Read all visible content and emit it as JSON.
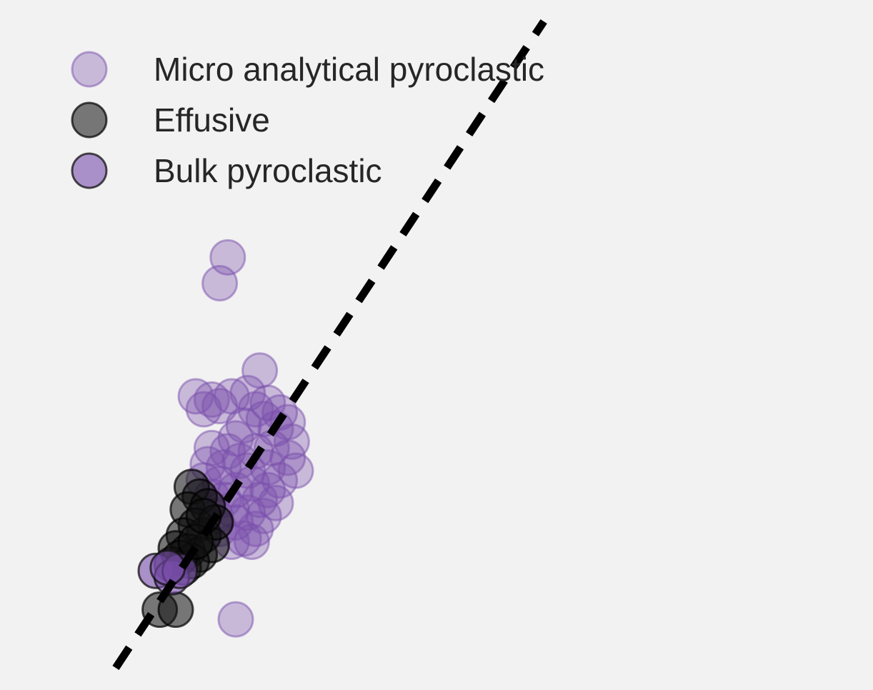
{
  "chart_data": {
    "type": "scatter",
    "title": "",
    "xlabel": "",
    "ylabel": "",
    "xlim": [
      0,
      100
    ],
    "ylim": [
      0,
      100
    ],
    "grid": false,
    "legend_position": "upper-left",
    "background": "#f2f2f2",
    "series": [
      {
        "name": "Micro analytical pyroclastic",
        "color": "#7a4fab",
        "edge_color": "#7a4fab",
        "opacity": 0.35,
        "points": [
          [
            24.0,
            63.5
          ],
          [
            23.0,
            59.5
          ],
          [
            28.0,
            46.0
          ],
          [
            25.0,
            7.5
          ],
          [
            20.0,
            42.0
          ],
          [
            21.0,
            40.0
          ],
          [
            22.0,
            41.5
          ],
          [
            23.0,
            40.5
          ],
          [
            24.5,
            42.0
          ],
          [
            26.5,
            42.5
          ],
          [
            27.5,
            40.0
          ],
          [
            29.0,
            41.0
          ],
          [
            30.5,
            39.5
          ],
          [
            31.5,
            38.0
          ],
          [
            32.0,
            35.0
          ],
          [
            30.0,
            37.0
          ],
          [
            28.5,
            38.5
          ],
          [
            26.0,
            37.5
          ],
          [
            25.0,
            35.5
          ],
          [
            24.0,
            33.5
          ],
          [
            22.0,
            34.0
          ],
          [
            21.5,
            31.5
          ],
          [
            23.5,
            31.0
          ],
          [
            25.5,
            32.0
          ],
          [
            27.5,
            33.5
          ],
          [
            29.5,
            34.0
          ],
          [
            31.5,
            32.5
          ],
          [
            32.5,
            30.5
          ],
          [
            30.5,
            29.0
          ],
          [
            29.0,
            27.5
          ],
          [
            27.0,
            28.5
          ],
          [
            25.0,
            27.5
          ],
          [
            23.5,
            26.0
          ],
          [
            22.0,
            26.5
          ],
          [
            24.5,
            24.5
          ],
          [
            26.5,
            24.0
          ],
          [
            28.5,
            23.5
          ],
          [
            30.0,
            25.5
          ],
          [
            27.5,
            21.5
          ],
          [
            26.0,
            20.0
          ],
          [
            24.5,
            19.5
          ],
          [
            23.0,
            21.5
          ],
          [
            29.0,
            31.0
          ],
          [
            21.0,
            29.0
          ],
          [
            26.5,
            30.5
          ],
          [
            23.0,
            28.5
          ],
          [
            28.0,
            26.0
          ],
          [
            25.0,
            22.5
          ],
          [
            27.0,
            19.5
          ],
          [
            22.5,
            23.5
          ]
        ]
      },
      {
        "name": "Effusive",
        "color": "#111111",
        "edge_color": "#000000",
        "opacity": 0.55,
        "points": [
          [
            19.5,
            28.0
          ],
          [
            20.5,
            26.5
          ],
          [
            19.0,
            24.5
          ],
          [
            21.5,
            25.0
          ],
          [
            20.0,
            22.0
          ],
          [
            21.0,
            20.5
          ],
          [
            18.5,
            20.5
          ],
          [
            17.5,
            18.5
          ],
          [
            19.0,
            18.0
          ],
          [
            20.5,
            17.5
          ],
          [
            22.0,
            19.0
          ],
          [
            22.5,
            22.5
          ],
          [
            17.0,
            16.0
          ],
          [
            18.5,
            15.5
          ],
          [
            19.5,
            16.5
          ],
          [
            15.5,
            9.0
          ],
          [
            17.5,
            9.0
          ],
          [
            18.0,
            17.0
          ],
          [
            20.0,
            19.5
          ],
          [
            21.0,
            23.5
          ]
        ]
      },
      {
        "name": "Bulk pyroclastic",
        "color": "#7a4fab",
        "edge_color": "#111111",
        "opacity": 0.6,
        "points": [
          [
            15.0,
            15.0
          ],
          [
            17.0,
            14.0
          ],
          [
            18.0,
            15.0
          ],
          [
            16.5,
            15.5
          ]
        ]
      }
    ],
    "reference_line": {
      "style": "dashed",
      "color": "#000000",
      "points": [
        [
          10.0,
          0.0
        ],
        [
          63.5,
          100.0
        ]
      ]
    }
  }
}
